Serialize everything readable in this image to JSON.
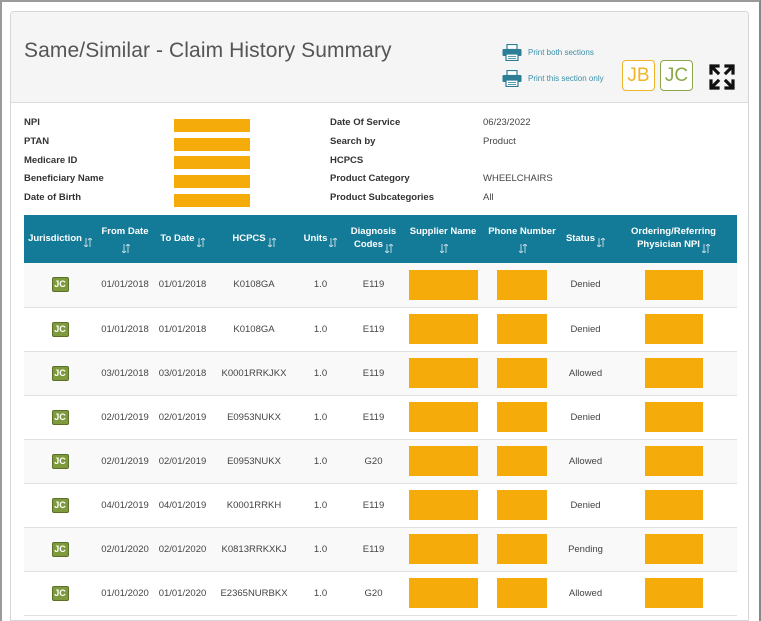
{
  "header": {
    "title": "Same/Similar - Claim History Summary",
    "print_both": "Print both sections",
    "print_only": "Print this section only",
    "badge_jb": "JB",
    "badge_jc": "JC"
  },
  "info": {
    "left": [
      {
        "label": "NPI"
      },
      {
        "label": "PTAN"
      },
      {
        "label": "Medicare ID"
      },
      {
        "label": "Beneficiary Name"
      },
      {
        "label": "Date of Birth"
      }
    ],
    "right": [
      {
        "label": "Date Of Service",
        "value": "06/23/2022"
      },
      {
        "label": "Search by",
        "value": "Product"
      },
      {
        "label": "HCPCS",
        "value": ""
      },
      {
        "label": "Product Category",
        "value": "WHEELCHAIRS"
      },
      {
        "label": "Product Subcategories",
        "value": "All"
      }
    ]
  },
  "table": {
    "columns": [
      "Jurisdiction",
      "From Date",
      "To Date",
      "HCPCS",
      "Units",
      "Diagnosis Codes",
      "Supplier Name",
      "Phone Number",
      "Status",
      "Ordering/Referring Physician NPI"
    ],
    "rows": [
      {
        "jurisdiction": "JC",
        "from": "01/01/2018",
        "to": "01/01/2018",
        "hcpcs": "K0108GA",
        "units": "1.0",
        "dx": "E119",
        "status": "Denied"
      },
      {
        "jurisdiction": "JC",
        "from": "01/01/2018",
        "to": "01/01/2018",
        "hcpcs": "K0108GA",
        "units": "1.0",
        "dx": "E119",
        "status": "Denied"
      },
      {
        "jurisdiction": "JC",
        "from": "03/01/2018",
        "to": "03/01/2018",
        "hcpcs": "K0001RRKJKX",
        "units": "1.0",
        "dx": "E119",
        "status": "Allowed"
      },
      {
        "jurisdiction": "JC",
        "from": "02/01/2019",
        "to": "02/01/2019",
        "hcpcs": "E0953NUKX",
        "units": "1.0",
        "dx": "E119",
        "status": "Denied"
      },
      {
        "jurisdiction": "JC",
        "from": "02/01/2019",
        "to": "02/01/2019",
        "hcpcs": "E0953NUKX",
        "units": "1.0",
        "dx": "G20",
        "status": "Allowed"
      },
      {
        "jurisdiction": "JC",
        "from": "04/01/2019",
        "to": "04/01/2019",
        "hcpcs": "K0001RRKH",
        "units": "1.0",
        "dx": "E119",
        "status": "Denied"
      },
      {
        "jurisdiction": "JC",
        "from": "02/01/2020",
        "to": "02/01/2020",
        "hcpcs": "K0813RRKXKJ",
        "units": "1.0",
        "dx": "E119",
        "status": "Pending"
      },
      {
        "jurisdiction": "JC",
        "from": "01/01/2020",
        "to": "01/01/2020",
        "hcpcs": "E2365NURBKX",
        "units": "1.0",
        "dx": "G20",
        "status": "Allowed"
      }
    ]
  },
  "colors": {
    "header_teal": "#137b98",
    "redaction": "#f5ac0a",
    "jb_badge": "#f0b428",
    "jc_badge": "#8aa84a",
    "jc_chip": "#7f9a3c"
  }
}
